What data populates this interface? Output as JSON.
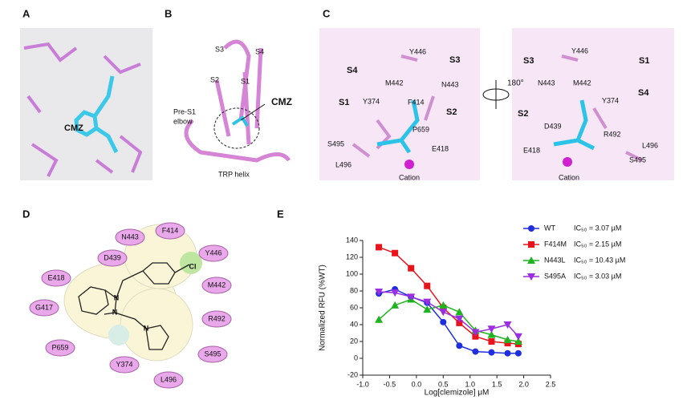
{
  "panel_a": {
    "label": "A",
    "texts": [
      "CMZ"
    ]
  },
  "panel_b": {
    "label": "B",
    "texts": [
      "S3",
      "S4",
      "S2",
      "S1",
      "Pre-S1",
      "elbow",
      "CMZ",
      "TRP helix"
    ]
  },
  "panel_c": {
    "label": "C",
    "rotation": "180°",
    "texts": [
      "S4",
      "Y446",
      "S3",
      "M442",
      "N443",
      "S1",
      "Y374",
      "F414",
      "S2",
      "P659",
      "S495",
      "E418",
      "L496",
      "Cation",
      "Y446",
      "S3",
      "S1",
      "N443",
      "M442",
      "S4",
      "Y374",
      "S2",
      "D439",
      "R492",
      "E418",
      "L496",
      "S495",
      "Cation"
    ]
  },
  "panel_d": {
    "label": "D",
    "residues": [
      "N443",
      "F414",
      "Y446",
      "D439",
      "M442",
      "E418",
      "R492",
      "G417",
      "S495",
      "P659",
      "Y374",
      "L496"
    ],
    "atoms": [
      "N",
      "N",
      "N",
      "Cl"
    ]
  },
  "panel_e": {
    "label": "E"
  },
  "chart_data": {
    "type": "line",
    "xlabel": "Log[clemizole] μM",
    "ylabel": "Normalized RFU (%WT)",
    "x": [
      -0.7,
      -0.4,
      -0.1,
      0.2,
      0.5,
      0.8,
      1.1,
      1.4,
      1.7,
      1.9
    ],
    "xlim": [
      -1.0,
      2.5
    ],
    "xticks": [
      {
        "value": -1.0,
        "label": "-1.0"
      },
      {
        "value": -0.5,
        "label": "-0.5"
      },
      {
        "value": 0.0,
        "label": "0.0"
      },
      {
        "value": 0.5,
        "label": "0.5"
      },
      {
        "value": 1.0,
        "label": "1.0"
      },
      {
        "value": 1.5,
        "label": "1.5"
      },
      {
        "value": 2.0,
        "label": "2.0"
      },
      {
        "value": 2.5,
        "label": "2.5"
      }
    ],
    "ylim": [
      -20,
      140
    ],
    "yticks": [
      -20,
      0,
      20,
      40,
      60,
      80,
      100,
      120,
      140
    ],
    "series": [
      {
        "name": "WT",
        "note": "IC₅₀ = 3.07 µM",
        "color": "#1f2fe0",
        "marker": "circle",
        "values": [
          77,
          82,
          73,
          66,
          43,
          15,
          8,
          7,
          6,
          6
        ]
      },
      {
        "name": "F414M",
        "note": "IC₅₀ = 2.15 µM",
        "color": "#e8141c",
        "marker": "square",
        "values": [
          132,
          125,
          107,
          86,
          60,
          42,
          26,
          20,
          18,
          17
        ]
      },
      {
        "name": "N443L",
        "note": "IC₅₀ = 10.43 µM",
        "color": "#1fb41f",
        "marker": "triangle-up",
        "values": [
          46,
          63,
          70,
          58,
          63,
          55,
          33,
          28,
          22,
          20
        ]
      },
      {
        "name": "S495A",
        "note": "IC₅₀ = 3.03 µM",
        "color": "#9a2ee0",
        "marker": "triangle-down",
        "values": [
          79,
          78,
          73,
          67,
          55,
          47,
          31,
          35,
          40,
          26
        ]
      }
    ]
  }
}
